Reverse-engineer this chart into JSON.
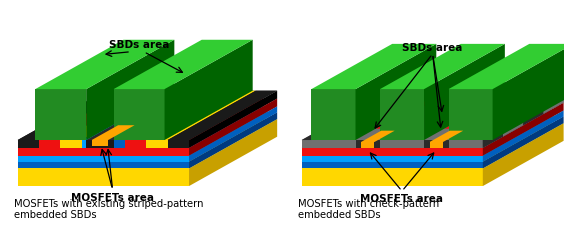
{
  "title_left": "MOSFETs with existing striped-pattern\nembedded SBDs",
  "title_right": "MOSFETs with check-pattern\nembedded SBDs",
  "label_sbds": "SBDs area",
  "label_mosfets": "MOSFETs area",
  "colors": {
    "yellow": "#FFD700",
    "yellow_side": "#C8A000",
    "blue1": "#0060C0",
    "blue1_side": "#003A80",
    "blue2": "#00A0FF",
    "blue2_side": "#0060C0",
    "red": "#EE1111",
    "red_side": "#880000",
    "black": "#1A1A1A",
    "black_side": "#000000",
    "green_front": "#228B22",
    "green_top": "#32CD32",
    "green_side": "#006400",
    "orange": "#FFA500",
    "gray": "#707070",
    "gray_side": "#404040",
    "white": "#FFFFFF",
    "cyan": "#00BFFF"
  },
  "fig_width": 5.7,
  "fig_height": 2.25,
  "dpi": 100
}
